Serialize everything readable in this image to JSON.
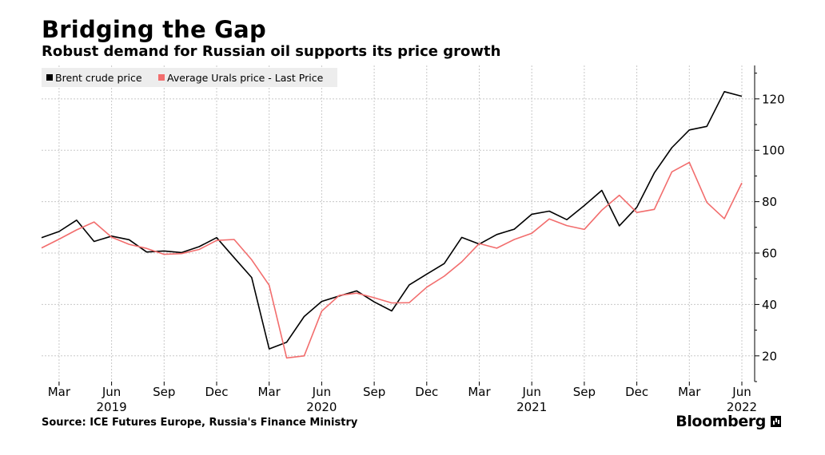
{
  "header": {
    "title": "Bridging the Gap",
    "subtitle": "Robust demand for Russian oil supports its price growth"
  },
  "footer": {
    "source": "Source: ICE Futures Europe, Russia's Finance Ministry",
    "brand": "Bloomberg"
  },
  "colors": {
    "brent": "#000000",
    "urals": "#f26d6d",
    "grid": "#c8c8c8",
    "legend_bg": "#ededed"
  },
  "chart_data": {
    "type": "line",
    "title": "Bridging the Gap",
    "subtitle": "Robust demand for Russian oil supports its price growth",
    "xlabel": "",
    "ylabel": "",
    "ylim": [
      10,
      133
    ],
    "yticks": [
      20,
      40,
      60,
      80,
      100,
      120
    ],
    "x_axis": {
      "month_ticks": [
        "Mar",
        "Jun",
        "Sep",
        "Dec",
        "Mar",
        "Jun",
        "Sep",
        "Dec",
        "Mar",
        "Jun",
        "Sep",
        "Dec",
        "Mar",
        "Jun"
      ],
      "year_labels": [
        "2019",
        "2020",
        "2021",
        "2022"
      ]
    },
    "grid": true,
    "legend_position": "top-left",
    "x": [
      "2019-02",
      "2019-03",
      "2019-04",
      "2019-05",
      "2019-06",
      "2019-07",
      "2019-08",
      "2019-09",
      "2019-10",
      "2019-11",
      "2019-12",
      "2020-01",
      "2020-02",
      "2020-03",
      "2020-04",
      "2020-05",
      "2020-06",
      "2020-07",
      "2020-08",
      "2020-09",
      "2020-10",
      "2020-11",
      "2020-12",
      "2021-01",
      "2021-02",
      "2021-03",
      "2021-04",
      "2021-05",
      "2021-06",
      "2021-07",
      "2021-08",
      "2021-09",
      "2021-10",
      "2021-11",
      "2021-12",
      "2022-01",
      "2022-02",
      "2022-03",
      "2022-04",
      "2022-05",
      "2022-06"
    ],
    "series": [
      {
        "name": "Brent crude price",
        "color": "#000000",
        "values": [
          66,
          68.4,
          72.8,
          64.5,
          66.6,
          65.2,
          60.4,
          60.8,
          60.2,
          62.5,
          66,
          58.2,
          50.5,
          22.7,
          25.3,
          35.3,
          41.2,
          43.3,
          45.3,
          41,
          37.5,
          47.6,
          51.8,
          55.9,
          66.1,
          63.5,
          67.2,
          69.3,
          75.1,
          76.3,
          73,
          78.5,
          84.4,
          70.6,
          77.8,
          91.2,
          101,
          107.9,
          109.3,
          122.8,
          121
        ]
      },
      {
        "name": "Average Urals price - Last Price",
        "color": "#f26d6d",
        "values": [
          62,
          65.4,
          69,
          72.1,
          66.2,
          63.4,
          61.8,
          59.5,
          59.8,
          61.4,
          64.9,
          65.3,
          57.4,
          47.5,
          19.2,
          20,
          37.4,
          43.5,
          44.4,
          42.6,
          40.6,
          40.7,
          46.7,
          51,
          56.6,
          63.7,
          61.9,
          65.3,
          67.7,
          73.3,
          70.7,
          69.2,
          76.7,
          82.5,
          75.8,
          77,
          91.6,
          95.3,
          79.7,
          73.4,
          87.3
        ]
      }
    ]
  }
}
